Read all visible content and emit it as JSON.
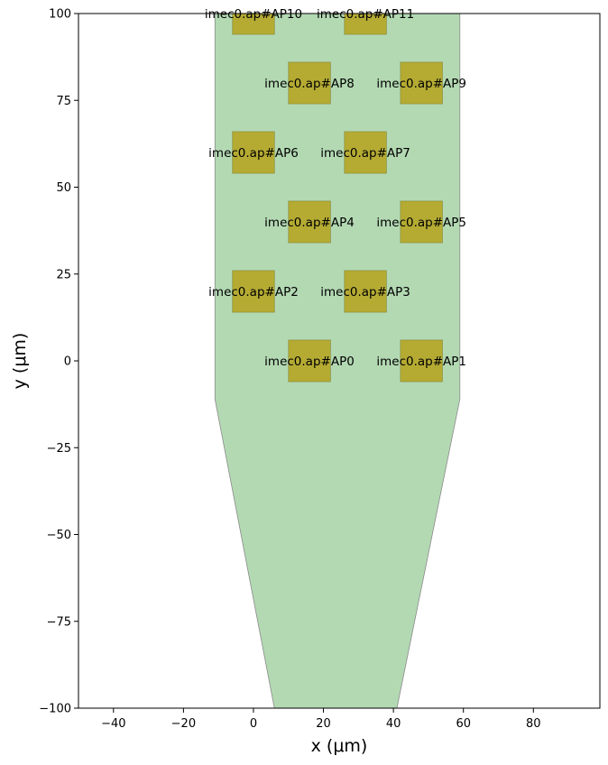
{
  "chart_data": {
    "type": "scatter",
    "xlabel": "x (μm)",
    "ylabel": "y (μm)",
    "xlim": [
      -50,
      99
    ],
    "ylim": [
      -100,
      100
    ],
    "xticks": [
      -40,
      -20,
      0,
      20,
      40,
      60,
      80
    ],
    "yticks": [
      -100,
      -75,
      -50,
      -25,
      0,
      25,
      50,
      75,
      100
    ],
    "grid": false,
    "probe_outline": {
      "color": "#b3d9b3",
      "points": [
        [
          -11,
          100
        ],
        [
          59,
          100
        ],
        [
          59,
          -11
        ],
        [
          41,
          -100
        ],
        [
          6,
          -100
        ],
        [
          -11,
          -11
        ]
      ]
    },
    "contact_color": "#b5ab33",
    "contact_size": 12,
    "contacts": [
      {
        "x": 16,
        "y": 0,
        "label": "imec0.ap#AP0"
      },
      {
        "x": 48,
        "y": 0,
        "label": "imec0.ap#AP1"
      },
      {
        "x": 0,
        "y": 20,
        "label": "imec0.ap#AP2"
      },
      {
        "x": 32,
        "y": 20,
        "label": "imec0.ap#AP3"
      },
      {
        "x": 16,
        "y": 40,
        "label": "imec0.ap#AP4"
      },
      {
        "x": 48,
        "y": 40,
        "label": "imec0.ap#AP5"
      },
      {
        "x": 0,
        "y": 60,
        "label": "imec0.ap#AP6"
      },
      {
        "x": 32,
        "y": 60,
        "label": "imec0.ap#AP7"
      },
      {
        "x": 16,
        "y": 80,
        "label": "imec0.ap#AP8"
      },
      {
        "x": 48,
        "y": 80,
        "label": "imec0.ap#AP9"
      },
      {
        "x": 0,
        "y": 100,
        "label": "imec0.ap#AP10"
      },
      {
        "x": 32,
        "y": 100,
        "label": "imec0.ap#AP11"
      }
    ]
  }
}
